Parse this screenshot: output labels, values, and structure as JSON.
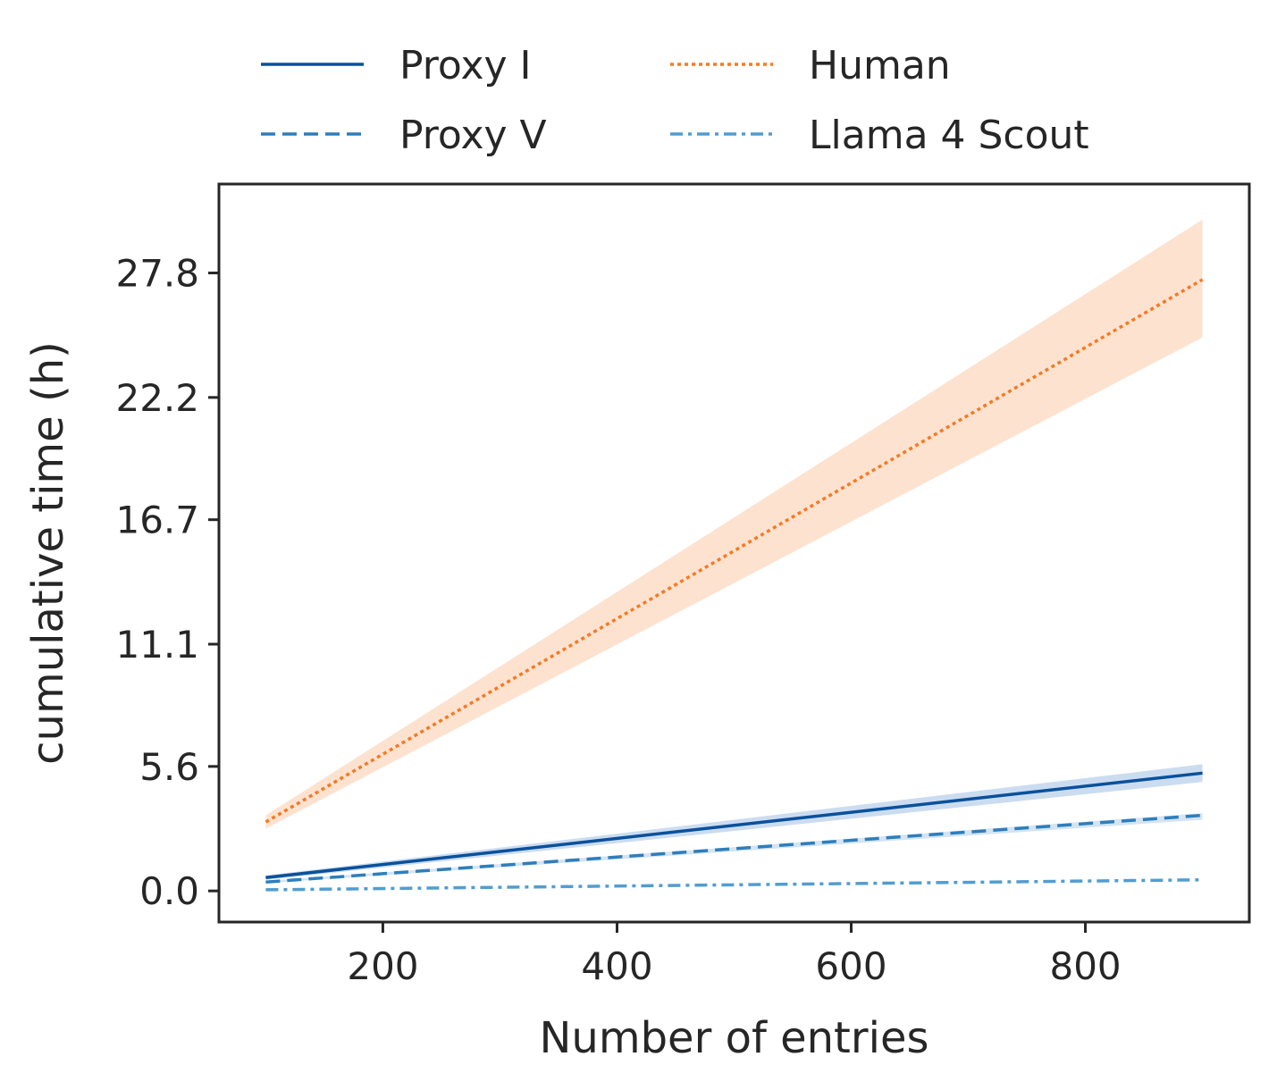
{
  "chart_data": {
    "type": "line",
    "xlabel": "Number of entries",
    "ylabel": "cumulative time (h)",
    "xlim": [
      60,
      940
    ],
    "ylim": [
      -1.4,
      31.8
    ],
    "xticks": [
      200,
      400,
      600,
      800
    ],
    "yticks": [
      0.0,
      5.6,
      11.1,
      16.7,
      22.2,
      27.8
    ],
    "ytick_labels": [
      "0.0",
      "5.6",
      "11.1",
      "16.7",
      "22.2",
      "27.8"
    ],
    "grid": false,
    "legend": {
      "placement": "top-center",
      "columns": 2
    },
    "x": [
      100,
      900
    ],
    "series": [
      {
        "name": "Proxy I",
        "values": [
          0.6,
          5.3
        ],
        "band_lower": [
          0.5,
          4.9
        ],
        "band_upper": [
          0.7,
          5.7
        ],
        "color": "#08519c",
        "style": "solid"
      },
      {
        "name": "Proxy V",
        "values": [
          0.4,
          3.4
        ],
        "band_lower": [
          0.35,
          3.2
        ],
        "band_upper": [
          0.45,
          3.5
        ],
        "color": "#2e7ebc",
        "style": "dashed"
      },
      {
        "name": "Human",
        "values": [
          3.1,
          27.5
        ],
        "band_lower": [
          2.8,
          24.9
        ],
        "band_upper": [
          3.4,
          30.2
        ],
        "color": "#f57a24",
        "style": "dotted",
        "band_color": "#fddfcb"
      },
      {
        "name": "Llama 4 Scout",
        "values": [
          0.05,
          0.5
        ],
        "color": "#519dd0",
        "style": "dashdot"
      }
    ]
  }
}
